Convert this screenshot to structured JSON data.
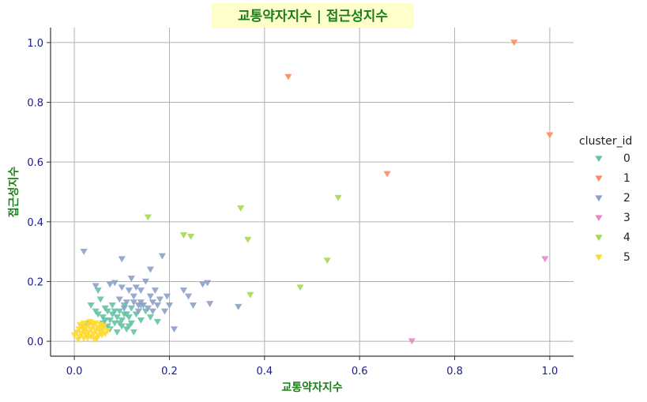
{
  "chart_data": {
    "type": "scatter",
    "title": "교통약자지수 | 접근성지수",
    "xlabel": "교통약자지수",
    "ylabel": "접근성지수",
    "xlim": [
      -0.05,
      1.05
    ],
    "ylim": [
      -0.05,
      1.05
    ],
    "xticks": [
      "0.0",
      "0.2",
      "0.4",
      "0.6",
      "0.8",
      "1.0"
    ],
    "yticks": [
      "0.0",
      "0.2",
      "0.4",
      "0.6",
      "0.8",
      "1.0"
    ],
    "grid": true,
    "marker": "triangle-down",
    "legend": {
      "title": "cluster_id",
      "position": "right"
    },
    "series": [
      {
        "name": "0",
        "color": "#66c2a5",
        "points": [
          [
            0.02,
            0.05
          ],
          [
            0.03,
            0.06
          ],
          [
            0.035,
            0.12
          ],
          [
            0.045,
            0.1
          ],
          [
            0.05,
            0.09
          ],
          [
            0.05,
            0.17
          ],
          [
            0.055,
            0.14
          ],
          [
            0.06,
            0.06
          ],
          [
            0.06,
            0.08
          ],
          [
            0.065,
            0.11
          ],
          [
            0.07,
            0.1
          ],
          [
            0.07,
            0.05
          ],
          [
            0.075,
            0.07
          ],
          [
            0.08,
            0.09
          ],
          [
            0.08,
            0.12
          ],
          [
            0.085,
            0.06
          ],
          [
            0.09,
            0.08
          ],
          [
            0.09,
            0.03
          ],
          [
            0.095,
            0.1
          ],
          [
            0.1,
            0.07
          ],
          [
            0.1,
            0.05
          ],
          [
            0.105,
            0.12
          ],
          [
            0.11,
            0.09
          ],
          [
            0.11,
            0.04
          ],
          [
            0.115,
            0.08
          ],
          [
            0.12,
            0.06
          ],
          [
            0.12,
            0.11
          ],
          [
            0.125,
            0.03
          ],
          [
            0.13,
            0.09
          ],
          [
            0.14,
            0.07
          ],
          [
            0.14,
            0.12
          ],
          [
            0.15,
            0.1
          ],
          [
            0.16,
            0.08
          ],
          [
            0.175,
            0.065
          ],
          [
            0.065,
            0.07
          ],
          [
            0.075,
            0.04
          ],
          [
            0.085,
            0.1
          ],
          [
            0.095,
            0.06
          ],
          [
            0.105,
            0.09
          ],
          [
            0.115,
            0.05
          ]
        ]
      },
      {
        "name": "1",
        "color": "#fc8d62",
        "points": [
          [
            0.45,
            0.885
          ],
          [
            0.925,
            1.0
          ],
          [
            1.0,
            0.69
          ],
          [
            0.658,
            0.56
          ]
        ]
      },
      {
        "name": "2",
        "color": "#8da0cb",
        "points": [
          [
            0.02,
            0.3
          ],
          [
            0.045,
            0.185
          ],
          [
            0.075,
            0.19
          ],
          [
            0.085,
            0.195
          ],
          [
            0.1,
            0.275
          ],
          [
            0.1,
            0.18
          ],
          [
            0.11,
            0.13
          ],
          [
            0.115,
            0.17
          ],
          [
            0.12,
            0.21
          ],
          [
            0.125,
            0.15
          ],
          [
            0.13,
            0.18
          ],
          [
            0.135,
            0.1
          ],
          [
            0.14,
            0.17
          ],
          [
            0.14,
            0.13
          ],
          [
            0.145,
            0.12
          ],
          [
            0.15,
            0.2
          ],
          [
            0.155,
            0.11
          ],
          [
            0.16,
            0.15
          ],
          [
            0.16,
            0.24
          ],
          [
            0.165,
            0.13
          ],
          [
            0.17,
            0.17
          ],
          [
            0.175,
            0.12
          ],
          [
            0.18,
            0.14
          ],
          [
            0.185,
            0.285
          ],
          [
            0.19,
            0.1
          ],
          [
            0.195,
            0.15
          ],
          [
            0.2,
            0.12
          ],
          [
            0.21,
            0.04
          ],
          [
            0.23,
            0.17
          ],
          [
            0.24,
            0.15
          ],
          [
            0.25,
            0.12
          ],
          [
            0.27,
            0.19
          ],
          [
            0.28,
            0.195
          ],
          [
            0.285,
            0.125
          ],
          [
            0.345,
            0.115
          ],
          [
            0.135,
            0.12
          ],
          [
            0.165,
            0.1
          ],
          [
            0.125,
            0.13
          ],
          [
            0.105,
            0.11
          ],
          [
            0.095,
            0.14
          ]
        ]
      },
      {
        "name": "3",
        "color": "#e78ac3",
        "points": [
          [
            0.71,
            0.0
          ],
          [
            0.99,
            0.275
          ]
        ]
      },
      {
        "name": "4",
        "color": "#a6d854",
        "points": [
          [
            0.155,
            0.415
          ],
          [
            0.23,
            0.355
          ],
          [
            0.245,
            0.35
          ],
          [
            0.35,
            0.445
          ],
          [
            0.365,
            0.34
          ],
          [
            0.37,
            0.155
          ],
          [
            0.475,
            0.18
          ],
          [
            0.532,
            0.27
          ],
          [
            0.555,
            0.48
          ]
        ]
      },
      {
        "name": "5",
        "color": "#ffd92f",
        "points": [
          [
            0.0,
            0.02
          ],
          [
            0.005,
            0.03
          ],
          [
            0.01,
            0.015
          ],
          [
            0.01,
            0.04
          ],
          [
            0.015,
            0.025
          ],
          [
            0.015,
            0.05
          ],
          [
            0.02,
            0.01
          ],
          [
            0.02,
            0.035
          ],
          [
            0.02,
            0.06
          ],
          [
            0.025,
            0.02
          ],
          [
            0.025,
            0.045
          ],
          [
            0.03,
            0.03
          ],
          [
            0.03,
            0.055
          ],
          [
            0.035,
            0.015
          ],
          [
            0.035,
            0.04
          ],
          [
            0.04,
            0.025
          ],
          [
            0.04,
            0.05
          ],
          [
            0.045,
            0.035
          ],
          [
            0.045,
            0.06
          ],
          [
            0.05,
            0.02
          ],
          [
            0.05,
            0.045
          ],
          [
            0.055,
            0.03
          ],
          [
            0.055,
            0.055
          ],
          [
            0.06,
            0.04
          ],
          [
            0.065,
            0.025
          ],
          [
            0.07,
            0.035
          ],
          [
            0.008,
            0.005
          ],
          [
            0.012,
            0.055
          ],
          [
            0.028,
            0.01
          ],
          [
            0.038,
            0.06
          ],
          [
            0.048,
            0.01
          ],
          [
            0.058,
            0.02
          ],
          [
            0.018,
            0.045
          ],
          [
            0.033,
            0.065
          ],
          [
            0.043,
            0.005
          ],
          [
            0.062,
            0.05
          ],
          [
            0.022,
            0.028
          ],
          [
            0.052,
            0.038
          ]
        ]
      }
    ]
  }
}
